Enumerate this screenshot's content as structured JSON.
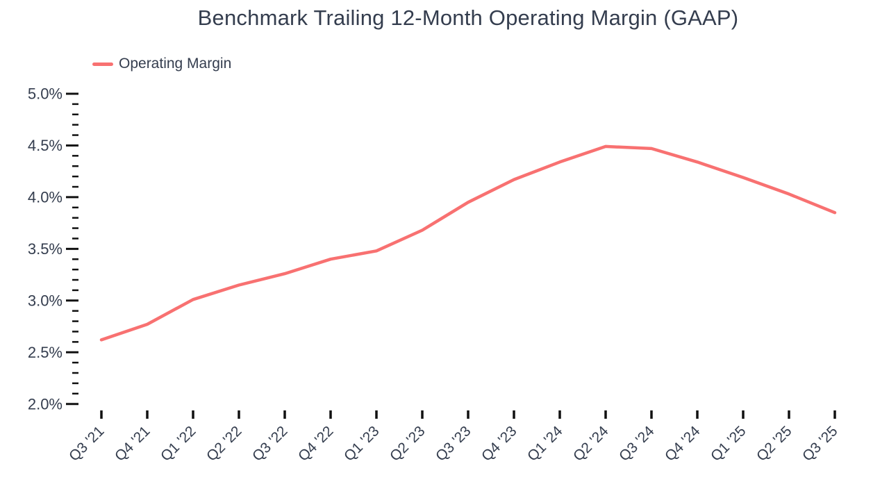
{
  "colors": {
    "line": "#F87171",
    "text": "#343D4E",
    "tick": "#111111",
    "background": "#FFFFFF"
  },
  "chart_data": {
    "type": "line",
    "title": "Benchmark Trailing 12-Month Operating Margin (GAAP)",
    "xlabel": "",
    "ylabel": "",
    "unit": "%",
    "categories": [
      "Q3 '21",
      "Q4 '21",
      "Q1 '22",
      "Q2 '22",
      "Q3 '22",
      "Q4 '22",
      "Q1 '23",
      "Q2 '23",
      "Q3 '23",
      "Q4 '23",
      "Q1 '24",
      "Q2 '24",
      "Q3 '24",
      "Q4 '24",
      "Q1 '25",
      "Q2 '25",
      "Q3 '25"
    ],
    "series": [
      {
        "name": "Operating Margin",
        "values": [
          2.62,
          2.77,
          3.01,
          3.15,
          3.26,
          3.4,
          3.48,
          3.68,
          3.95,
          4.17,
          4.34,
          4.49,
          4.47,
          4.34,
          4.19,
          4.03,
          3.85
        ]
      }
    ],
    "ylim": [
      2.0,
      5.0
    ],
    "y_ticks": [
      "5.0%",
      "4.5%",
      "4.0%",
      "3.5%",
      "3.0%",
      "2.5%",
      "2.0%"
    ],
    "y_tick_values": [
      5.0,
      4.5,
      4.0,
      3.5,
      3.0,
      2.5,
      2.0
    ],
    "minor_ticks_per_interval": 4,
    "grid": false,
    "legend_position": "top-left"
  }
}
